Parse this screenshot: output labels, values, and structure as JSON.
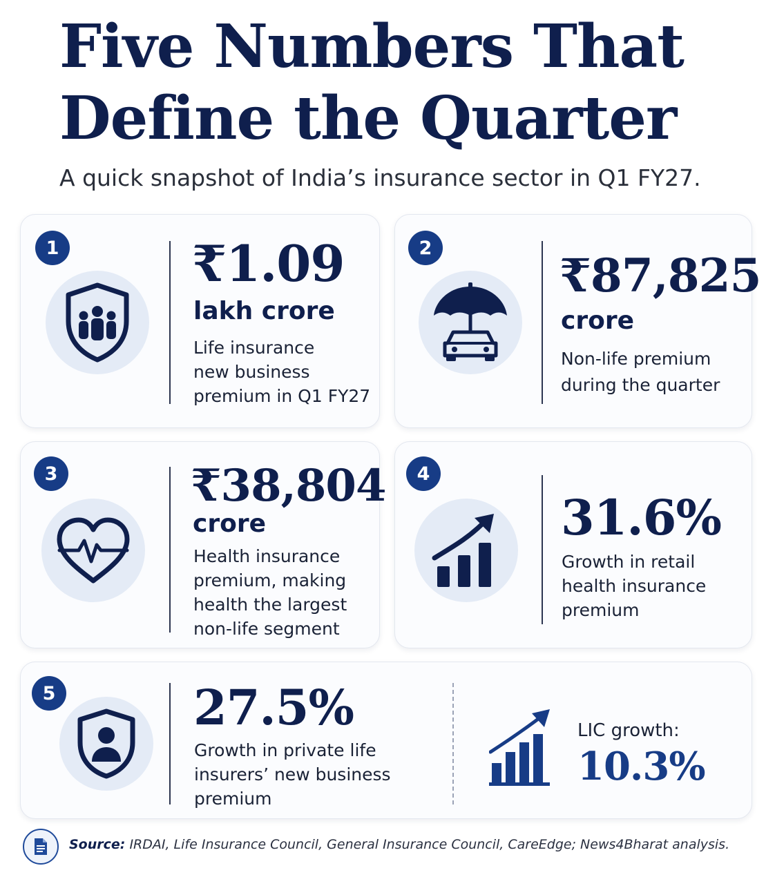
{
  "title": "Five Numbers That Define the Quarter",
  "subtitle": "A quick snapshot of India’s insurance sector in Q1 FY27.",
  "colors": {
    "navy": "#0f1f4d",
    "badge": "#173c86",
    "icon_bg": "#e4ebf6",
    "card_bg": "#fbfcfe"
  },
  "cards": [
    {
      "number": "1",
      "icon": "shield-people-icon",
      "value": "₹1.09",
      "unit": "lakh crore",
      "description": [
        "Life insurance",
        "new business",
        "premium in Q1 FY27"
      ]
    },
    {
      "number": "2",
      "icon": "umbrella-car-icon",
      "value": "₹87,825",
      "unit": "crore",
      "description": [
        "Non-life premium",
        "during the quarter"
      ]
    },
    {
      "number": "3",
      "icon": "heart-pulse-icon",
      "value": "₹38,804",
      "unit": "crore",
      "description": [
        "Health insurance",
        "premium, making",
        "health the largest",
        "non-life segment"
      ]
    },
    {
      "number": "4",
      "icon": "growth-chart-icon",
      "value": "31.6%",
      "description": [
        "Growth in retail",
        "health insurance",
        "premium"
      ]
    },
    {
      "number": "5",
      "icon": "shield-person-icon",
      "value": "27.5%",
      "description": [
        "Growth in private life",
        "insurers’ new business",
        "premium"
      ],
      "secondary": {
        "icon": "bar-growth-icon",
        "label": "LIC growth:",
        "value": "10.3%"
      }
    }
  ],
  "source": {
    "label": "Source:",
    "text": "IRDAI, Life Insurance Council, General Insurance Council, CareEdge; News4Bharat analysis.",
    "icon": "document-icon"
  }
}
